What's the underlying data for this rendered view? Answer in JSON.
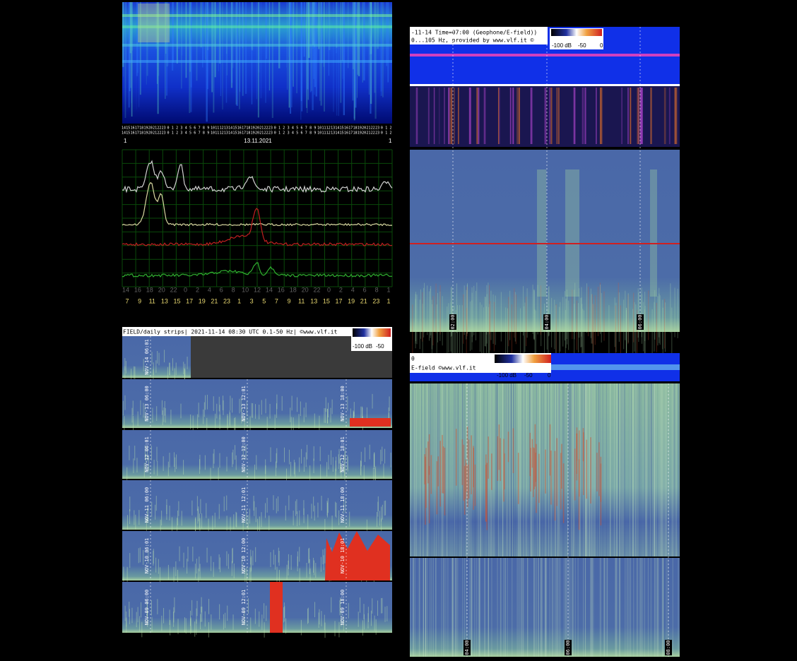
{
  "top_left": {
    "hour_row_1": [
      "14",
      "15",
      "16",
      "17",
      "18",
      "19",
      "20",
      "21",
      "22",
      "23",
      "0",
      "1",
      "2",
      "3",
      "4",
      "5",
      "6",
      "7",
      "8",
      "9",
      "10",
      "11",
      "12",
      "13",
      "14",
      "15",
      "16",
      "17",
      "18",
      "19",
      "20",
      "21",
      "22",
      "23",
      "0",
      "1",
      "2",
      "3",
      "4",
      "5",
      "6",
      "7",
      "8",
      "9",
      "10",
      "11",
      "12",
      "13",
      "14",
      "15",
      "16",
      "17",
      "18",
      "19",
      "20",
      "21",
      "22",
      "23",
      "0",
      "1",
      "2"
    ],
    "hour_row_2": [
      "14",
      "15",
      "16",
      "17",
      "18",
      "19",
      "20",
      "21",
      "22",
      "23",
      "0",
      "1",
      "2",
      "3",
      "4",
      "5",
      "6",
      "7",
      "8",
      "9",
      "10",
      "11",
      "12",
      "13",
      "14",
      "15",
      "16",
      "17",
      "18",
      "19",
      "20",
      "21",
      "22",
      "23",
      "0",
      "1",
      "2",
      "3",
      "4",
      "5",
      "6",
      "7",
      "8",
      "9",
      "10",
      "11",
      "12",
      "13",
      "14",
      "15",
      "16",
      "17",
      "18",
      "19",
      "20",
      "21",
      "22",
      "23",
      "0",
      "1",
      "2"
    ],
    "date": "13.11.2021",
    "edge_left": "1",
    "edge_right": "1",
    "chart_ticks_upper": [
      "14",
      "16",
      "18",
      "20",
      "22",
      "0",
      "2",
      "4",
      "6",
      "8",
      "10",
      "12",
      "14",
      "16",
      "18",
      "20",
      "22",
      "0",
      "2",
      "4",
      "6",
      "8",
      "1"
    ],
    "chart_ticks_lower": [
      "7",
      "9",
      "11",
      "13",
      "15",
      "17",
      "19",
      "21",
      "23",
      "1",
      "3",
      "5",
      "7",
      "9",
      "11",
      "13",
      "15",
      "17",
      "19",
      "21",
      "23",
      "1"
    ]
  },
  "top_right": {
    "title": "-11-14 Time=07:00 (Geophone/E-field))",
    "subtitle": "0...105 Hz, provided by www.vlf.it ©",
    "colorbar": [
      "-100 dB",
      "-50",
      "0"
    ],
    "time_labels": [
      "02:00",
      "04:00",
      "06:00"
    ]
  },
  "bottom_left": {
    "title": "FIELD/daily strips| 2021-11-14 08:30 UTC 0.1-50 Hz| ©www.vlf.it",
    "colorbar": [
      "-100 dB",
      "-50"
    ],
    "strips": [
      {
        "labels": [
          "NOV-14 06:01"
        ]
      },
      {
        "labels": [
          "NOV-13 06:00",
          "NOV-13 12:01",
          "NOV-13 18:00"
        ]
      },
      {
        "labels": [
          "NOV-12 06:01",
          "NOV-12 12:00",
          "NOV-12 18:01"
        ]
      },
      {
        "labels": [
          "NOV-11 06:00",
          "NOV-11 12:01",
          "NOV-11 18:00"
        ]
      },
      {
        "labels": [
          "NOV-10 06:01",
          "NOV-10 12:00",
          "NOV-10 18:01"
        ]
      },
      {
        "labels": [
          "NOV-09 06:00",
          "NOV-09 12:01",
          "NOV-09 18:00"
        ]
      }
    ]
  },
  "bottom_right": {
    "title_prefix": "0",
    "title": "E-field ©www.vlf.it",
    "colorbar": [
      "-100 dB",
      "-50",
      "0"
    ],
    "time_labels": [
      "04:00",
      "06:00",
      "08:00"
    ]
  }
}
